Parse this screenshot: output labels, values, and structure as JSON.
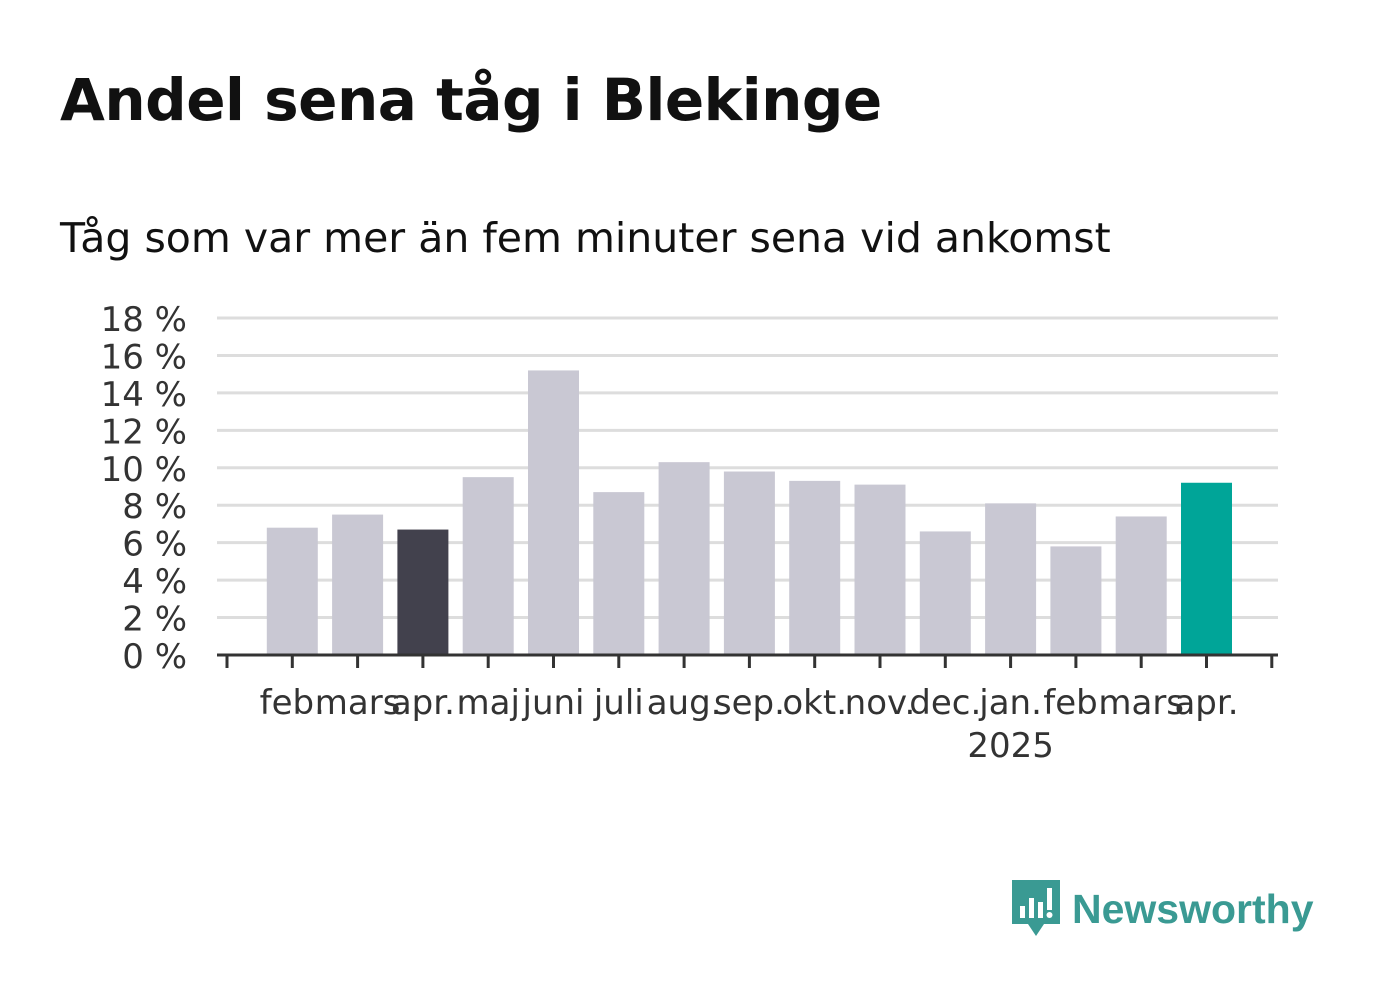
{
  "title": "Andel sena tåg i Blekinge",
  "subtitle": "Tåg som var mer än fem minuter sena vid ankomst",
  "brand": {
    "name": "Newsworthy",
    "color": "#3a9a93",
    "icon": "newsworthy-logo-icon"
  },
  "colors": {
    "default": "#c9c8d3",
    "previous_year": "#42414d",
    "latest": "#00a598",
    "grid": "#dddddd",
    "axis": "#333333",
    "text": "#333333"
  },
  "chart_data": {
    "type": "bar",
    "categories": [
      "feb.",
      "mars",
      "apr.",
      "maj",
      "juni",
      "juli",
      "aug.",
      "sep.",
      "okt.",
      "nov.",
      "dec.",
      "jan.",
      "feb.",
      "mars",
      "apr."
    ],
    "values": [
      6.8,
      7.5,
      6.7,
      9.5,
      15.2,
      8.7,
      10.3,
      9.8,
      9.3,
      9.1,
      6.6,
      8.1,
      5.8,
      7.4,
      9.2
    ],
    "highlight": {
      "2": "previous_year",
      "14": "latest"
    },
    "year_labels": [
      {
        "index": 11,
        "label": "2025"
      }
    ],
    "y_ticks": [
      "0 %",
      "2 %",
      "4 %",
      "6 %",
      "8 %",
      "10 %",
      "12 %",
      "14 %",
      "16 %",
      "18 %"
    ],
    "ylim": [
      0,
      18
    ],
    "grid": true,
    "legend": "none"
  }
}
